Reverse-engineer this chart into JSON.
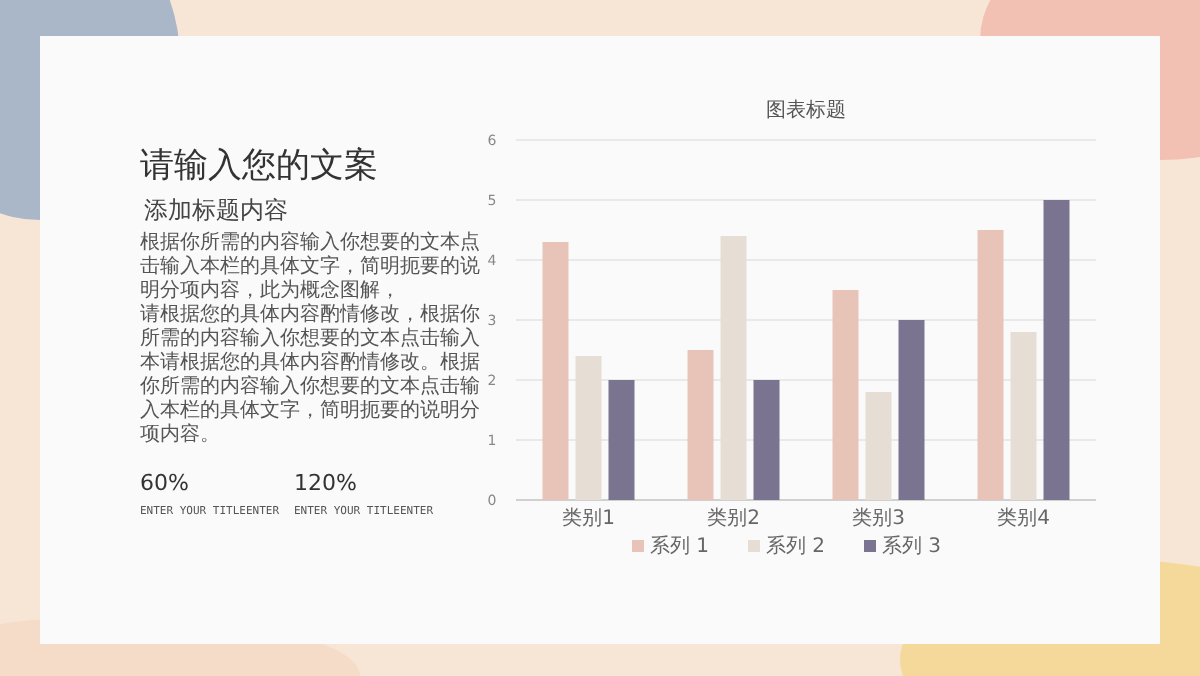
{
  "chart_data": [
    {
      "type": "other",
      "title": "请输入您的文案",
      "subtitle": "添加标题内容",
      "annotations": [
        "根据你所需的内容输入你想要的文本点击输入本栏的具体文字，简明扼要的说明分项内容，此为概念图解，",
        "请根据您的具体内容酌情修改，根据你所需的内容输入你想要的文本点击输入本请根据您的具体内容酌情修改。根据你所需的内容输入你想要的文本点击输入本栏的具体文字，简明扼要的说明分项内容。",
        "60%",
        "ENTER YOUR TITLEENTER",
        "120%",
        "ENTER YOUR TITLEENTER"
      ]
    },
    {
      "type": "bar",
      "title": "图表标题",
      "categories": [
        "类别1",
        "类别2",
        "类别3",
        "类别4"
      ],
      "series": [
        {
          "name": "系列 1",
          "color": "#e8c4b8",
          "values": [
            4.3,
            2.5,
            3.5,
            4.5
          ]
        },
        {
          "name": "系列 2",
          "color": "#e6ddd4",
          "values": [
            2.4,
            4.4,
            1.8,
            2.8
          ]
        },
        {
          "name": "系列 3",
          "color": "#7a7490",
          "values": [
            2,
            2,
            3,
            5
          ]
        }
      ],
      "ylim": [
        0,
        6
      ],
      "yticks": [
        0,
        1,
        2,
        3,
        4,
        5,
        6
      ],
      "grid": "y",
      "legend": "bottom"
    }
  ]
}
